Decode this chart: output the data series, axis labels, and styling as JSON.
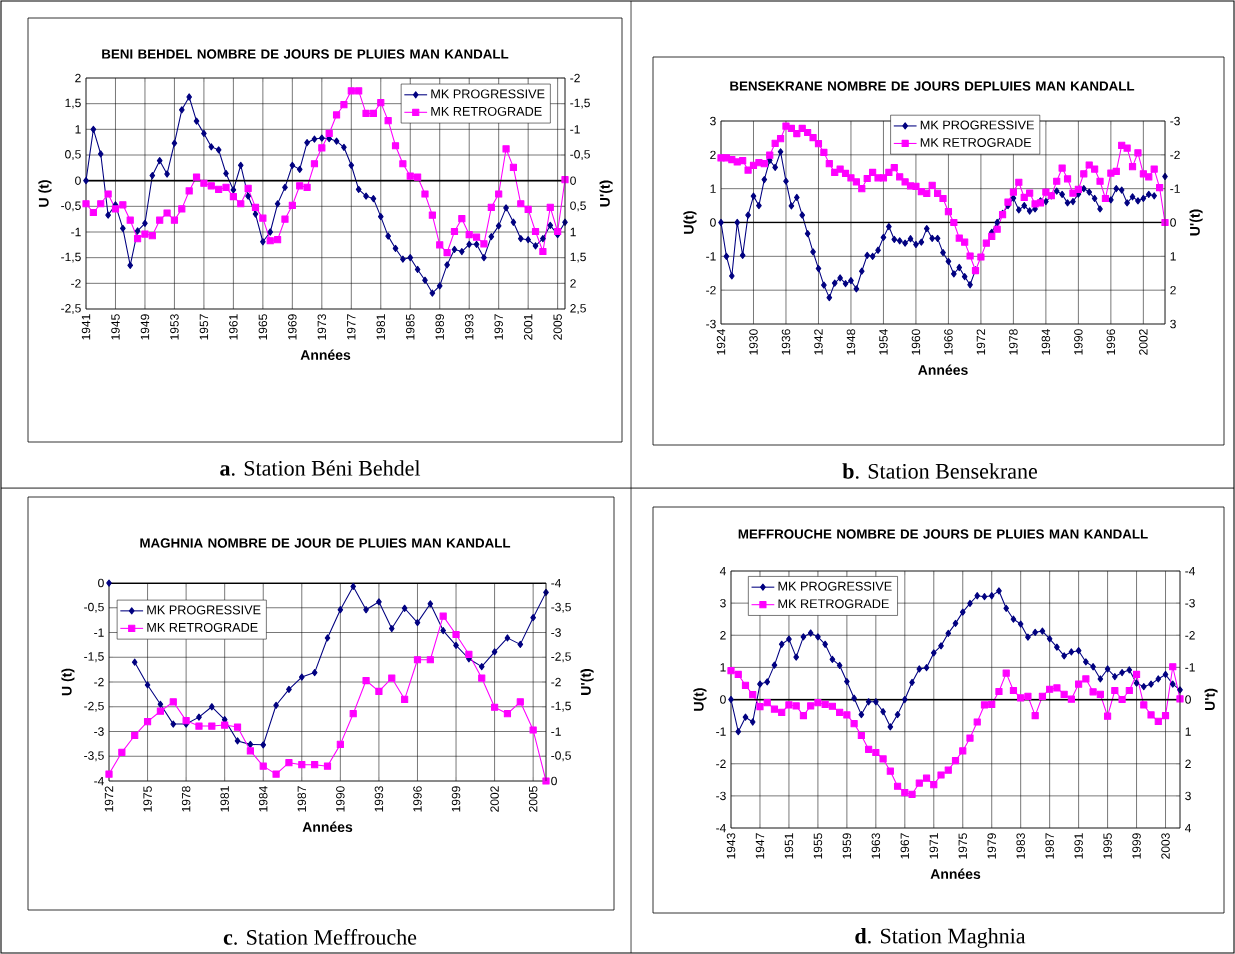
{
  "chart_data": [
    {
      "type": "line",
      "title": "BENI BEHDEL NOMBRE DE JOURS DE PLUIES MAN KANDALL",
      "xlabel": "Années",
      "ylabel": "U (t)",
      "y2label": "U'(t)",
      "x": [
        1941,
        1942,
        1943,
        1944,
        1945,
        1946,
        1947,
        1948,
        1949,
        1950,
        1951,
        1952,
        1953,
        1954,
        1955,
        1956,
        1957,
        1958,
        1959,
        1960,
        1961,
        1962,
        1963,
        1964,
        1965,
        1966,
        1967,
        1968,
        1969,
        1970,
        1971,
        1972,
        1973,
        1974,
        1975,
        1976,
        1977,
        1978,
        1979,
        1980,
        1981,
        1982,
        1983,
        1984,
        1985,
        1986,
        1987,
        1988,
        1989,
        1990,
        1991,
        1992,
        1993,
        1994,
        1995,
        1996,
        1997,
        1998,
        1999,
        2000,
        2001,
        2002,
        2003,
        2004,
        2005,
        2006
      ],
      "series": [
        {
          "name": "MK PROGRESSIVE",
          "color": "#000080",
          "marker": "diamond",
          "values": [
            0,
            1.0,
            0.52,
            -0.67,
            -0.47,
            -0.93,
            -1.65,
            -0.98,
            -0.83,
            0.1,
            0.39,
            0.13,
            0.73,
            1.38,
            1.63,
            1.16,
            0.92,
            0.66,
            0.6,
            0.14,
            -0.18,
            0.3,
            -0.3,
            -0.65,
            -1.19,
            -1.0,
            -0.45,
            -0.13,
            0.3,
            0.22,
            0.74,
            0.81,
            0.83,
            0.82,
            0.77,
            0.65,
            0.3,
            -0.17,
            -0.3,
            -0.35,
            -0.7,
            -1.08,
            -1.32,
            -1.53,
            -1.5,
            -1.73,
            -1.94,
            -2.19,
            -2.05,
            -1.64,
            -1.34,
            -1.38,
            -1.24,
            -1.24,
            -1.5,
            -1.09,
            -0.88,
            -0.53,
            -0.81,
            -1.13,
            -1.15,
            -1.27,
            -1.13,
            -0.87,
            -1.05,
            -0.81
          ]
        },
        {
          "name": "MK RETROGRADE",
          "color": "#ff00ff",
          "marker": "square",
          "values": [
            -0.45,
            -0.62,
            -0.45,
            -0.26,
            -0.55,
            -0.47,
            -0.77,
            -1.13,
            -1.04,
            -1.07,
            -0.77,
            -0.63,
            -0.77,
            -0.55,
            -0.2,
            0.07,
            -0.05,
            -0.1,
            -0.17,
            -0.13,
            -0.31,
            -0.45,
            -0.15,
            -0.52,
            -0.73,
            -1.17,
            -1.15,
            -0.75,
            -0.48,
            -0.1,
            -0.13,
            0.33,
            0.64,
            0.92,
            1.28,
            1.48,
            1.75,
            1.75,
            1.31,
            1.31,
            1.52,
            1.17,
            0.68,
            0.33,
            0.09,
            0.07,
            -0.26,
            -0.67,
            -1.25,
            -1.4,
            -0.99,
            -0.74,
            -1.05,
            -1.1,
            -1.23,
            -0.52,
            -0.26,
            0.62,
            0.26,
            -0.45,
            -0.56,
            -0.99,
            -1.38,
            -0.52,
            -0.99,
            0.02
          ]
        }
      ],
      "xlim": [
        1941,
        2006
      ],
      "xticks": [
        1941,
        1945,
        1949,
        1953,
        1957,
        1961,
        1965,
        1969,
        1973,
        1977,
        1981,
        1985,
        1989,
        1993,
        1997,
        2001,
        2005
      ],
      "ylim": [
        -2.5,
        2
      ],
      "yticks": [
        {
          "value": -2.5,
          "label": "-2,5"
        },
        -2,
        {
          "value": -1.5,
          "label": "-1,5"
        },
        -1,
        {
          "value": -0.5,
          "label": "-0,5"
        },
        0,
        {
          "value": 0.5,
          "label": "0,5"
        },
        1,
        {
          "value": 1.5,
          "label": "1,5"
        },
        2
      ],
      "y2lim": [
        2.5,
        -2
      ],
      "y2ticks": [
        -2,
        {
          "value": -1.5,
          "label": "-1,5"
        },
        -1,
        {
          "value": -0.5,
          "label": "-0,5"
        },
        0,
        {
          "value": 0.5,
          "label": "0,5"
        },
        1,
        {
          "value": 1.5,
          "label": "1,5"
        },
        2,
        {
          "value": 2.5,
          "label": "2,5"
        }
      ],
      "grid": true,
      "legend": "top right",
      "annotations": [
        "**a**. Station Béni Behdel"
      ]
    },
    {
      "type": "line",
      "title": "BENSEKRANE NOMBRE DE JOURS DEPLUIES MAN KANDALL",
      "xlabel": "Années",
      "ylabel": "U(t)",
      "y2label": "U'(t)",
      "x": [
        1924,
        1925,
        1926,
        1927,
        1928,
        1929,
        1930,
        1931,
        1932,
        1933,
        1934,
        1935,
        1936,
        1937,
        1938,
        1939,
        1940,
        1941,
        1942,
        1943,
        1944,
        1945,
        1946,
        1947,
        1948,
        1949,
        1950,
        1951,
        1952,
        1953,
        1954,
        1955,
        1956,
        1957,
        1958,
        1959,
        1960,
        1961,
        1962,
        1963,
        1964,
        1965,
        1966,
        1967,
        1968,
        1969,
        1970,
        1971,
        1972,
        1973,
        1974,
        1975,
        1976,
        1977,
        1978,
        1979,
        1980,
        1981,
        1982,
        1983,
        1984,
        1985,
        1986,
        1987,
        1988,
        1989,
        1990,
        1991,
        1992,
        1993,
        1994,
        1995,
        1996,
        1997,
        1998,
        1999,
        2000,
        2001,
        2002,
        2003,
        2004,
        2005,
        2006
      ],
      "series": [
        {
          "name": "MK PROGRESSIVE",
          "color": "#000080",
          "marker": "diamond",
          "values": [
            0,
            -1.0,
            -1.58,
            0,
            -0.97,
            0.22,
            0.78,
            0.5,
            1.27,
            1.84,
            1.63,
            2.09,
            1.22,
            0.49,
            0.74,
            0.22,
            -0.33,
            -0.87,
            -1.36,
            -1.85,
            -2.22,
            -1.79,
            -1.64,
            -1.81,
            -1.72,
            -1.96,
            -1.44,
            -0.97,
            -1.0,
            -0.82,
            -0.44,
            -0.12,
            -0.5,
            -0.54,
            -0.61,
            -0.48,
            -0.65,
            -0.58,
            -0.18,
            -0.47,
            -0.47,
            -0.89,
            -1.15,
            -1.52,
            -1.33,
            -1.6,
            -1.84,
            -1.4,
            null,
            null,
            -0.29,
            0,
            0.27,
            0.5,
            0.72,
            0.37,
            0.5,
            0.34,
            0.4,
            0.64,
            0.62,
            0.79,
            0.93,
            0.83,
            0.58,
            0.62,
            0.84,
            1.0,
            0.9,
            0.71,
            0.4,
            null,
            0.67,
            1.0,
            0.96,
            0.58,
            0.76,
            0.64,
            0.71,
            0.83,
            0.79,
            null,
            1.36
          ]
        },
        {
          "name": "MK RETROGRADE",
          "color": "#ff00ff",
          "marker": "square",
          "values": [
            1.91,
            1.91,
            1.86,
            1.79,
            1.83,
            1.55,
            1.69,
            1.77,
            1.74,
            1.99,
            2.34,
            2.48,
            2.85,
            2.78,
            2.63,
            2.78,
            2.66,
            2.51,
            2.33,
            2.07,
            1.74,
            1.48,
            1.58,
            1.45,
            1.32,
            1.2,
            1.0,
            1.3,
            1.48,
            1.32,
            1.32,
            1.48,
            1.62,
            1.35,
            1.2,
            1.08,
            1.07,
            0.91,
            0.86,
            1.1,
            0.86,
            0.71,
            0.32,
            0,
            -0.46,
            -0.58,
            -0.99,
            -1.42,
            -1.02,
            -0.61,
            -0.41,
            -0.2,
            0.23,
            0.6,
            0.9,
            1.19,
            0.74,
            0.87,
            0.55,
            0.58,
            0.9,
            0.79,
            1.22,
            1.61,
            1.29,
            0.87,
            0.98,
            1.44,
            1.7,
            1.58,
            1.22,
            0.71,
            1.46,
            1.51,
            2.28,
            2.2,
            1.65,
            2.06,
            1.44,
            1.35,
            1.58,
            1.03,
            0
          ]
        }
      ],
      "xlim": [
        1924,
        2006
      ],
      "xticks": [
        1924,
        1930,
        1936,
        1942,
        1948,
        1954,
        1960,
        1966,
        1972,
        1978,
        1984,
        1990,
        1996,
        2002
      ],
      "ylim": [
        -3,
        3
      ],
      "yticks": [
        -3,
        -2,
        -1,
        0,
        1,
        2,
        3
      ],
      "y2lim": [
        3,
        -3
      ],
      "y2ticks": [
        -3,
        -2,
        -1,
        0,
        1,
        2,
        3
      ],
      "grid": true,
      "legend": "top",
      "annotations": [
        "**b**. Station Bensekrane"
      ]
    },
    {
      "type": "line",
      "title": "MAGHNIA NOMBRE DE JOUR DE PLUIES MAN KANDALL",
      "xlabel": "Années",
      "ylabel": "U (t)",
      "y2label": "U'(t)",
      "x": [
        1972,
        1973,
        1974,
        1975,
        1976,
        1977,
        1978,
        1979,
        1980,
        1981,
        1982,
        1983,
        1984,
        1985,
        1986,
        1987,
        1988,
        1989,
        1990,
        1991,
        1992,
        1993,
        1994,
        1995,
        1996,
        1997,
        1998,
        1999,
        2000,
        2001,
        2002,
        2003,
        2004,
        2005,
        2006
      ],
      "series": [
        {
          "name": "MK PROGRESSIVE",
          "color": "#000080",
          "marker": "diamond",
          "values": [
            0,
            null,
            -1.6,
            -2.06,
            -2.45,
            -2.85,
            -2.85,
            -2.71,
            -2.5,
            -2.76,
            -3.19,
            -3.26,
            -3.27,
            -2.47,
            -2.15,
            -1.9,
            -1.81,
            -1.11,
            -0.54,
            -0.07,
            -0.54,
            -0.38,
            -0.92,
            -0.51,
            -0.8,
            -0.42,
            -0.96,
            -1.26,
            -1.53,
            -1.69,
            -1.39,
            -1.11,
            -1.24,
            -0.7,
            -0.19
          ]
        },
        {
          "name": "MK RETROGRADE",
          "color": "#ff00ff",
          "marker": "square",
          "values": [
            -3.86,
            -3.42,
            -3.08,
            -2.8,
            -2.59,
            -2.4,
            -2.78,
            -2.89,
            -2.89,
            -2.87,
            -2.91,
            -3.39,
            -3.7,
            -3.86,
            -3.63,
            -3.67,
            -3.67,
            -3.7,
            -3.26,
            -2.64,
            -1.97,
            -2.19,
            -1.92,
            -2.35,
            -1.55,
            -1.55,
            -0.67,
            -1.04,
            -1.44,
            -1.92,
            -2.51,
            -2.64,
            -2.4,
            -2.97,
            -4.0
          ]
        }
      ],
      "xlim": [
        1972,
        2006
      ],
      "xticks": [
        1972,
        1975,
        1978,
        1981,
        1984,
        1987,
        1990,
        1993,
        1996,
        1999,
        2002,
        2005
      ],
      "ylim": [
        -4,
        0
      ],
      "yticks": [
        -4,
        {
          "value": -3.5,
          "label": "-3,5"
        },
        -3,
        {
          "value": -2.5,
          "label": "-2,5"
        },
        -2,
        {
          "value": -1.5,
          "label": "-1,5"
        },
        -1,
        {
          "value": -0.5,
          "label": "-0,5"
        },
        0
      ],
      "y2lim": [
        0,
        -4
      ],
      "y2ticks": [
        -4,
        {
          "value": -3.5,
          "label": "-3,5"
        },
        -3,
        {
          "value": -2.5,
          "label": "-2,5"
        },
        -2,
        {
          "value": -1.5,
          "label": "-1,5"
        },
        -1,
        {
          "value": -0.5,
          "label": "-0,5"
        },
        0
      ],
      "grid": true,
      "legend": "top left",
      "annotations": [
        "**c**. Station Meffrouche"
      ]
    },
    {
      "type": "line",
      "title": "MEFFROUCHE NOMBRE DE JOURS DE PLUIES MAN KANDALL",
      "xlabel": "Années",
      "ylabel": "U(t)",
      "y2label": "U't)",
      "x": [
        1943,
        1944,
        1945,
        1946,
        1947,
        1948,
        1949,
        1950,
        1951,
        1952,
        1953,
        1954,
        1955,
        1956,
        1957,
        1958,
        1959,
        1960,
        1961,
        1962,
        1963,
        1964,
        1965,
        1966,
        1967,
        1968,
        1969,
        1970,
        1971,
        1972,
        1973,
        1974,
        1975,
        1976,
        1977,
        1978,
        1979,
        1980,
        1981,
        1982,
        1983,
        1984,
        1985,
        1986,
        1987,
        1988,
        1989,
        1990,
        1991,
        1992,
        1993,
        1994,
        1995,
        1996,
        1997,
        1998,
        1999,
        2000,
        2001,
        2002,
        2003,
        2004,
        2005
      ],
      "series": [
        {
          "name": "MK PROGRESSIVE",
          "color": "#000080",
          "marker": "diamond",
          "values": [
            0,
            -1.0,
            -0.55,
            -0.7,
            0.48,
            0.55,
            1.07,
            1.72,
            1.88,
            1.32,
            1.95,
            2.07,
            1.95,
            1.72,
            1.25,
            1.06,
            0.56,
            0.04,
            -0.47,
            -0.07,
            -0.07,
            -0.38,
            -0.85,
            -0.47,
            0,
            0.53,
            0.95,
            0.99,
            1.45,
            1.67,
            2.06,
            2.37,
            2.72,
            2.99,
            3.23,
            3.2,
            3.23,
            3.38,
            2.84,
            2.5,
            2.35,
            1.94,
            2.09,
            2.13,
            1.89,
            1.63,
            1.36,
            1.48,
            1.52,
            1.17,
            1.02,
            0.64,
            0.95,
            0.71,
            0.84,
            0.92,
            0.51,
            0.4,
            0.48,
            0.64,
            0.78,
            0.48,
            0.3
          ]
        },
        {
          "name": "MK RETROGRADE",
          "color": "#ff00ff",
          "marker": "square",
          "values": [
            0.9,
            0.78,
            0.44,
            0.15,
            -0.22,
            -0.1,
            -0.3,
            -0.4,
            -0.17,
            -0.2,
            -0.5,
            -0.2,
            -0.1,
            -0.15,
            -0.21,
            -0.4,
            -0.48,
            -0.75,
            -1.12,
            -1.55,
            -1.65,
            -1.85,
            -2.23,
            -2.7,
            -2.9,
            -2.95,
            -2.6,
            -2.45,
            -2.65,
            -2.35,
            -2.2,
            -1.9,
            -1.6,
            -1.2,
            -0.7,
            -0.17,
            -0.15,
            0.25,
            0.82,
            0.28,
            0.05,
            0.1,
            -0.5,
            0.1,
            0.32,
            0.36,
            0.16,
            0.01,
            0.48,
            0.64,
            0.24,
            0.16,
            -0.52,
            0.28,
            0,
            0.28,
            0.78,
            -0.17,
            -0.48,
            -0.68,
            -0.5,
            1.02,
            0.02
          ]
        }
      ],
      "xlim": [
        1943,
        2005
      ],
      "xticks": [
        1943,
        1947,
        1951,
        1955,
        1959,
        1963,
        1967,
        1971,
        1975,
        1979,
        1983,
        1987,
        1991,
        1995,
        1999,
        2003
      ],
      "ylim": [
        -4,
        4
      ],
      "yticks": [
        -4,
        -3,
        -2,
        -1,
        0,
        1,
        2,
        3,
        4
      ],
      "y2lim": [
        4,
        -4
      ],
      "y2ticks": [
        -4,
        -3,
        -2,
        -1,
        0,
        1,
        2,
        3,
        4
      ],
      "grid": true,
      "legend": "top left",
      "annotations": [
        "**d**. Station Maghnia"
      ]
    }
  ]
}
